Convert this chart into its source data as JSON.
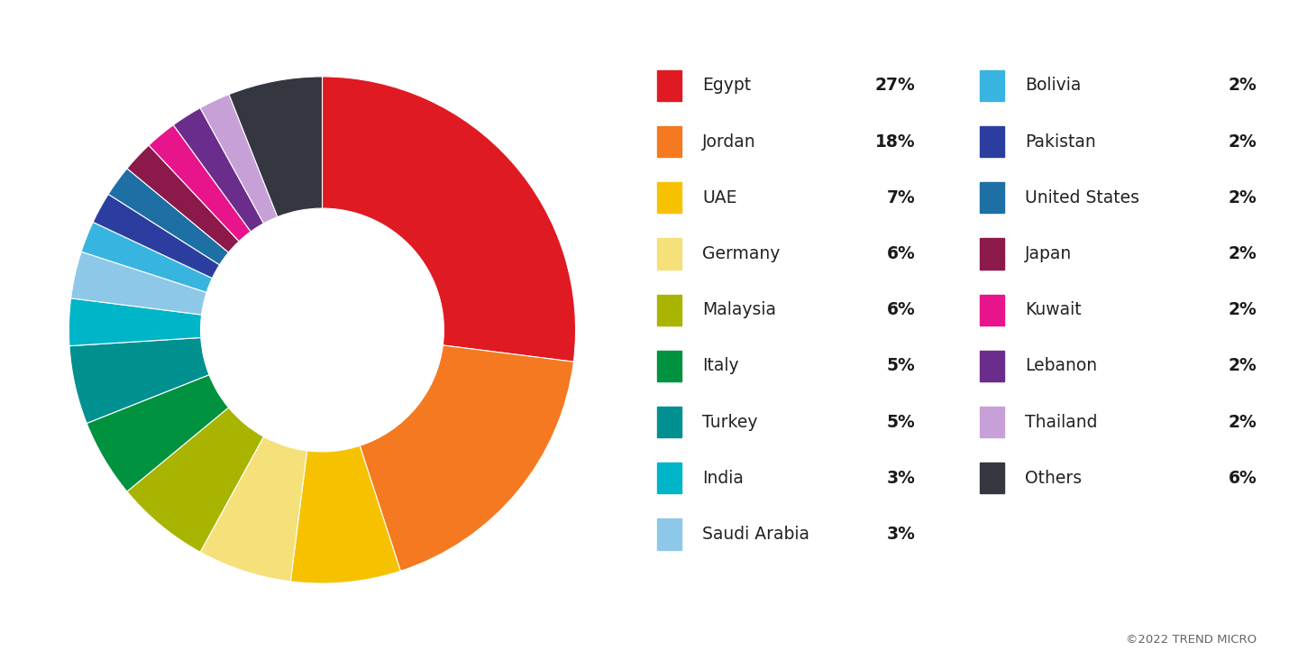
{
  "labels": [
    "Egypt",
    "Jordan",
    "UAE",
    "Germany",
    "Malaysia",
    "Italy",
    "Turkey",
    "India",
    "Saudi Arabia",
    "Bolivia",
    "Pakistan",
    "United States",
    "Japan",
    "Kuwait",
    "Lebanon",
    "Thailand",
    "Others"
  ],
  "values": [
    27,
    18,
    7,
    6,
    6,
    5,
    5,
    3,
    3,
    2,
    2,
    2,
    2,
    2,
    2,
    2,
    6
  ],
  "colors": [
    "#e01a22",
    "#f47920",
    "#f6c200",
    "#f5e07a",
    "#a8b400",
    "#00923f",
    "#009090",
    "#00b5c8",
    "#8dc8e8",
    "#38b4e0",
    "#2b3ea0",
    "#1d6fa4",
    "#8b1a4a",
    "#e8148c",
    "#6b2d8b",
    "#c8a0d8",
    "#343740"
  ],
  "legend_left": [
    "Egypt",
    "Jordan",
    "UAE",
    "Germany",
    "Malaysia",
    "Italy",
    "Turkey",
    "India",
    "Saudi Arabia"
  ],
  "legend_left_pct": [
    "27%",
    "18%",
    "7%",
    "6%",
    "6%",
    "5%",
    "5%",
    "3%",
    "3%"
  ],
  "legend_right": [
    "Bolivia",
    "Pakistan",
    "United States",
    "Japan",
    "Kuwait",
    "Lebanon",
    "Thailand",
    "Others"
  ],
  "legend_right_pct": [
    "2%",
    "2%",
    "2%",
    "2%",
    "2%",
    "2%",
    "2%",
    "6%"
  ],
  "legend_bg_color": "#ebebeb",
  "background_color": "#ffffff",
  "watermark": "©2022 TREND MICRO"
}
